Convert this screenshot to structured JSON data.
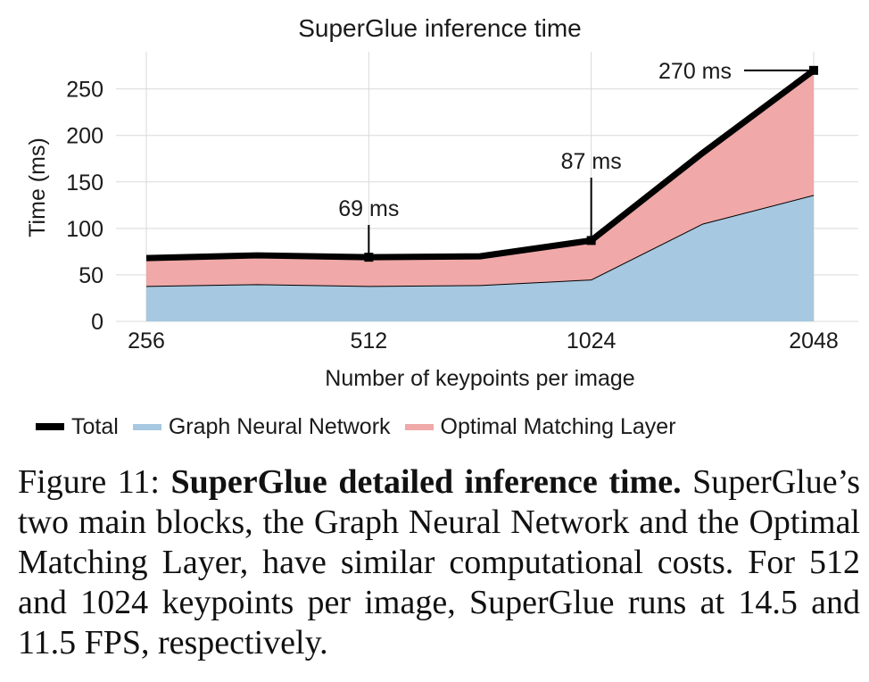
{
  "chart_data": {
    "type": "area",
    "title": "SuperGlue inference time",
    "xlabel": "Number of keypoints per image",
    "ylabel": "Time (ms)",
    "x": [
      256,
      362,
      512,
      724,
      1024,
      1448,
      2048
    ],
    "x_scale": "log2",
    "x_ticks": [
      "256",
      "512",
      "1024",
      "2048"
    ],
    "ylim": [
      0,
      290
    ],
    "y_ticks": [
      "0",
      "50",
      "100",
      "150",
      "200",
      "250"
    ],
    "grid": true,
    "legend_position": "bottom",
    "stacked": true,
    "series": [
      {
        "name": "Graph Neural Network",
        "values": [
          38,
          40,
          38,
          39,
          45,
          105,
          136
        ],
        "color": "#a6c8e0"
      },
      {
        "name": "Optimal Matching Layer",
        "values": [
          30,
          31,
          31,
          31,
          42,
          76,
          134
        ],
        "color": "#f0a8a8"
      }
    ],
    "total": {
      "name": "Total",
      "values": [
        68,
        71,
        69,
        70,
        87,
        181,
        270
      ],
      "color": "#000000"
    },
    "annotations": [
      {
        "text": "69 ms",
        "x": 512,
        "y": 69
      },
      {
        "text": "87 ms",
        "x": 1024,
        "y": 87
      },
      {
        "text": "270 ms",
        "x": 2048,
        "y": 270
      }
    ]
  },
  "caption": {
    "prefix": "Figure 11: ",
    "bold": "SuperGlue detailed inference time.",
    "body": " SuperGlue’s two main blocks, the Graph Neural Network and the Optimal Matching Layer, have similar computational costs. For 512 and 1024 keypoints per image, SuperGlue runs at 14.5 and 11.5 FPS, respectively."
  }
}
